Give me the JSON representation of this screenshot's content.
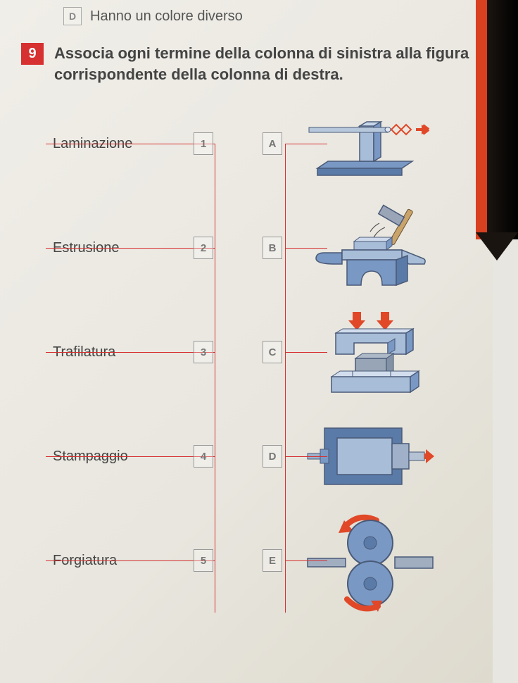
{
  "prev_option": {
    "letter": "D",
    "text": "Hanno un colore diverso"
  },
  "question": {
    "number": "9",
    "text": "Associa ogni termine della colonna di sinistra alla figura corrispondente della colonna di destra."
  },
  "colors": {
    "accent": "#d63030",
    "steel_light": "#a8bdd8",
    "steel_mid": "#7a98c4",
    "steel_dark": "#5a7aa8",
    "arrow": "#e04828",
    "outline": "#4a5a78"
  },
  "rows": [
    {
      "term": "Laminazione",
      "num": "1",
      "letter": "A",
      "figure": "trafilatura"
    },
    {
      "term": "Estrusione",
      "num": "2",
      "letter": "B",
      "figure": "forgiatura"
    },
    {
      "term": "Trafilatura",
      "num": "3",
      "letter": "C",
      "figure": "stampaggio"
    },
    {
      "term": "Stampaggio",
      "num": "4",
      "letter": "D",
      "figure": "estrusione"
    },
    {
      "term": "Forgiatura",
      "num": "5",
      "letter": "E",
      "figure": "laminazione"
    }
  ]
}
